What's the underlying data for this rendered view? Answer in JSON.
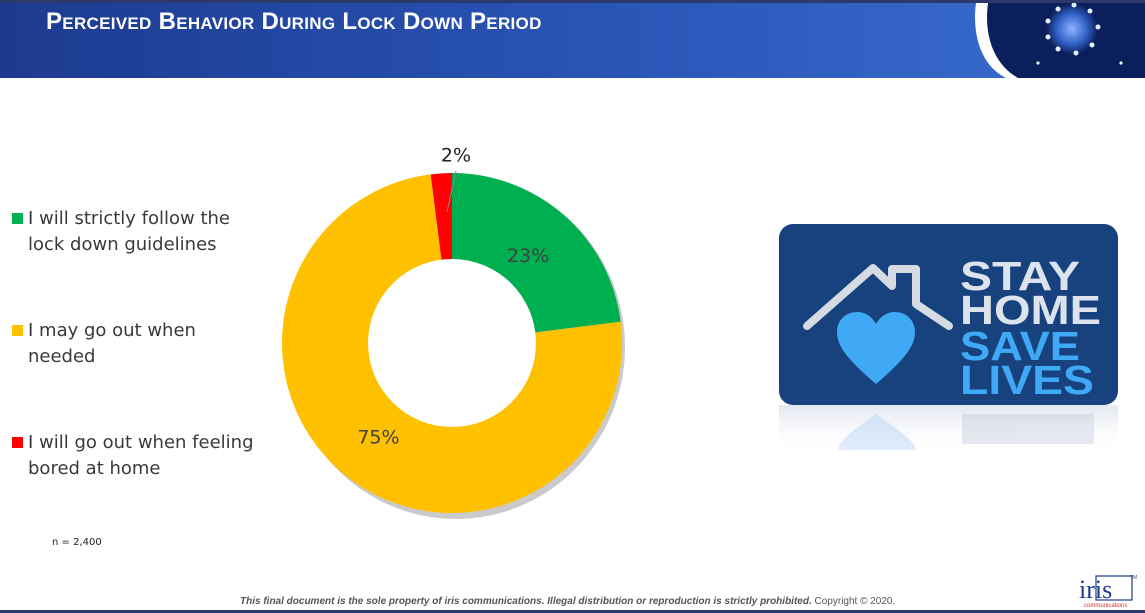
{
  "header": {
    "title": "Perceived Behavior During Lock Down Period"
  },
  "chart_data": {
    "type": "pie",
    "categories": [
      "I will strictly follow the lock down guidelines",
      "I may go out when needed",
      "I will go out when feeling bored at home"
    ],
    "values": [
      23,
      75,
      2
    ],
    "labels": [
      "23%",
      "75%",
      "2%"
    ],
    "colors": [
      "#00b050",
      "#ffc000",
      "#ff0000"
    ],
    "legend_position": "left",
    "donut": true
  },
  "legend": {
    "items": [
      {
        "line1": "I will strictly follow the",
        "line2": "lock down guidelines",
        "color": "#00b050"
      },
      {
        "line1": "I may go out when",
        "line2": "needed",
        "color": "#ffc000"
      },
      {
        "line1": "I will go out when feeling",
        "line2": "bored at home",
        "color": "#ff0000"
      }
    ]
  },
  "sample_note": "n = 2,400",
  "badge": {
    "line1": "STAY",
    "line2": "HOME",
    "line3": "SAVE",
    "line4": "LIVES"
  },
  "footer": {
    "notice": "This final document is the sole property of iris communications. Illegal distribution or reproduction is strictly prohibited.",
    "copyright": "Copyright © 2020.",
    "logo_text": "iris",
    "logo_sub": "communications",
    "logo_tm": "TM"
  }
}
